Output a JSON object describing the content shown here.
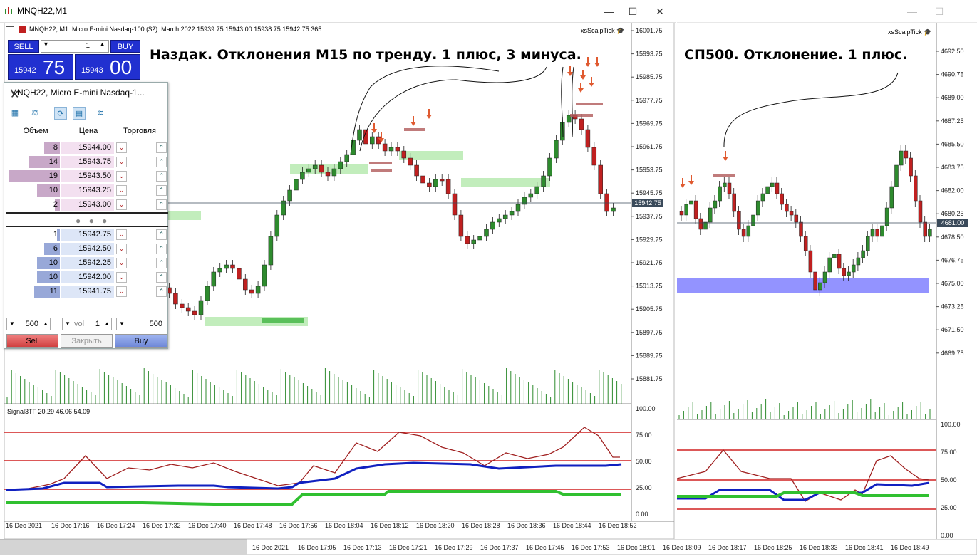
{
  "window": {
    "title": "MNQH22,M1",
    "controls": {
      "minimize": "—",
      "maximize": "☐",
      "close": "✕"
    }
  },
  "left_chart": {
    "header": "MNQH22, M1:  Micro E-mini Nasdaq-100 ($2): March 2022   15939.75  15943.00  15938.75  15942.75   365",
    "indicator_name": "xsScalpTick",
    "annotation": "Наздак. Отклонения М15 по тренду. 1 плюс, 3 минуса.",
    "current_price_label": "15942.75",
    "price_axis": [
      "16001.75",
      "15993.75",
      "15985.75",
      "15977.75",
      "15969.75",
      "15961.75",
      "15953.75",
      "15945.75",
      "15937.75",
      "15929.75",
      "15921.75",
      "15913.75",
      "15905.75",
      "15897.75",
      "15889.75",
      "15881.75"
    ],
    "time_axis": [
      "16 Dec 2021",
      "16 Dec 17:16",
      "16 Dec 17:24",
      "16 Dec 17:32",
      "16 Dec 17:40",
      "16 Dec 17:48",
      "16 Dec 17:56",
      "16 Dec 18:04",
      "16 Dec 18:12",
      "16 Dec 18:20",
      "16 Dec 18:28",
      "16 Dec 18:36",
      "16 Dec 18:44",
      "16 Dec 18:52"
    ],
    "oscillator_label": "Signal3TF 20.29 46.06 54.09",
    "oscillator_axis": [
      "100.00",
      "75.00",
      "50.00",
      "25.00",
      "0.00"
    ]
  },
  "right_chart": {
    "indicator_name": "xsScalpTick",
    "annotation": "СП500. Отклонение. 1 плюс.",
    "current_price_label": "4681.00",
    "price_axis": [
      "4692.50",
      "4690.75",
      "4689.00",
      "4687.25",
      "4685.50",
      "4683.75",
      "4682.00",
      "4680.25",
      "4678.50",
      "4676.75",
      "4675.00",
      "4673.25",
      "4671.50",
      "4669.75"
    ],
    "oscillator_axis": [
      "100.00",
      "75.00",
      "50.00",
      "25.00",
      "0.00"
    ],
    "time_axis": [
      "16 Dec 2021",
      "16 Dec 17:05",
      "16 Dec 17:13",
      "16 Dec 17:21",
      "16 Dec 17:29",
      "16 Dec 17:37",
      "16 Dec 17:45",
      "16 Dec 17:53",
      "16 Dec 18:01",
      "16 Dec 18:09",
      "16 Dec 18:17",
      "16 Dec 18:25",
      "16 Dec 18:33",
      "16 Dec 18:41",
      "16 Dec 18:49"
    ]
  },
  "one_click": {
    "sell_label": "SELL",
    "buy_label": "BUY",
    "lot": "1",
    "bid_small": "15942",
    "bid_large": "75",
    "ask_small": "15943",
    "ask_large": "00"
  },
  "dom": {
    "title": "MNQH22, Micro E-mini Nasdaq-1...",
    "columns": {
      "volume": "Объем",
      "price": "Цена",
      "trade": "Торговля"
    },
    "asks": [
      {
        "volume": "8",
        "price": "15944.00",
        "fill": 0.3
      },
      {
        "volume": "14",
        "price": "15943.75",
        "fill": 0.6
      },
      {
        "volume": "19",
        "price": "15943.50",
        "fill": 1.0
      },
      {
        "volume": "10",
        "price": "15943.25",
        "fill": 0.45
      },
      {
        "volume": "2",
        "price": "15943.00",
        "fill": 0.1
      }
    ],
    "bids": [
      {
        "volume": "1",
        "price": "15942.75",
        "fill": 0.05
      },
      {
        "volume": "6",
        "price": "15942.50",
        "fill": 0.3
      },
      {
        "volume": "10",
        "price": "15942.25",
        "fill": 0.45
      },
      {
        "volume": "10",
        "price": "15942.00",
        "fill": 0.45
      },
      {
        "volume": "11",
        "price": "15941.75",
        "fill": 0.5
      }
    ],
    "dots": "● ● ●",
    "left_qty": "500",
    "vol_label": "vol",
    "vol_value": "1",
    "right_qty": "500",
    "sell_button": "Sell",
    "close_button": "Закрыть",
    "buy_button": "Buy"
  },
  "colors": {
    "bull": "#2e8b2e",
    "bear": "#c02020",
    "zone_green": "#a8e6a0",
    "zone_blue": "#8080ff",
    "level_red": "#d02020",
    "osc_blue": "#1020c0",
    "osc_green": "#30c030",
    "osc_brown": "#a02020"
  }
}
